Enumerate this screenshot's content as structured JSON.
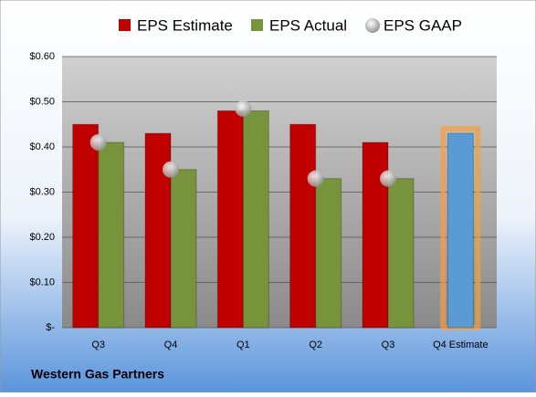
{
  "chart_data": {
    "type": "bar",
    "title": "Western Gas Partners",
    "categories": [
      "Q3",
      "Q4",
      "Q1",
      "Q2",
      "Q3",
      "Q4 Estimate"
    ],
    "series": [
      {
        "name": "EPS Estimate",
        "color": "#c00000",
        "values": [
          0.45,
          0.43,
          0.48,
          0.45,
          0.41,
          0.43
        ],
        "point_colors": [
          "#c00000",
          "#c00000",
          "#c00000",
          "#c00000",
          "#c00000",
          "#5b9bd5"
        ]
      },
      {
        "name": "EPS Actual",
        "color": "#77933c",
        "values": [
          0.41,
          0.35,
          0.48,
          0.33,
          0.33,
          null
        ]
      },
      {
        "name": "EPS GAAP",
        "color": "#bfbfbf",
        "type": "scatter",
        "values": [
          0.41,
          0.35,
          0.485,
          0.33,
          0.33,
          null
        ]
      }
    ],
    "ylim": [
      0,
      0.6
    ],
    "yticks": [
      {
        "value": 0,
        "label": "$-"
      },
      {
        "value": 0.1,
        "label": "$0.10"
      },
      {
        "value": 0.2,
        "label": "$0.20"
      },
      {
        "value": 0.3,
        "label": "$0.30"
      },
      {
        "value": 0.4,
        "label": "$0.40"
      },
      {
        "value": 0.5,
        "label": "$0.50"
      },
      {
        "value": 0.6,
        "label": "$0.60"
      }
    ],
    "grid": true,
    "legend": "top"
  }
}
